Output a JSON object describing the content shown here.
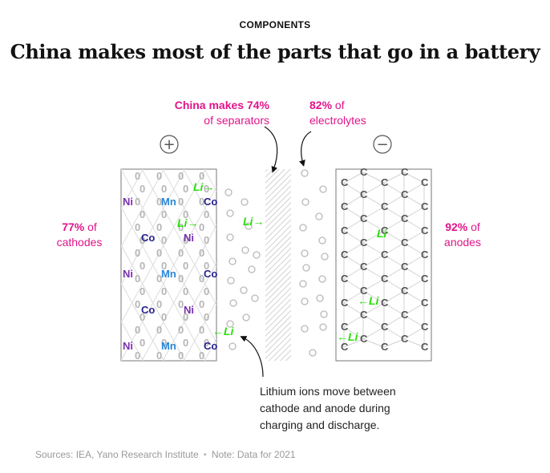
{
  "header": {
    "kicker": "COMPONENTS",
    "title": "China makes most of the parts that go in a battery"
  },
  "annotations": {
    "separators": {
      "lead": "China makes 74%",
      "rest": "of separators"
    },
    "electrolytes": {
      "lead": "82%",
      "rest1": " of",
      "rest2": "electrolytes"
    },
    "cathodes": {
      "lead": "77%",
      "rest1": " of",
      "rest2": "cathodes"
    },
    "anodes": {
      "lead": "92%",
      "rest1": " of",
      "rest2": "anodes"
    }
  },
  "note": {
    "line1": "Lithium ions move between",
    "line2": "cathode and anode during",
    "line3": "charging and discharge."
  },
  "diagram": {
    "positive_terminal": "+",
    "negative_terminal": "−",
    "cathode_elements": [
      {
        "label": "Ni",
        "color": "#7b2fb0"
      },
      {
        "label": "Mn",
        "color": "#2a86d6"
      },
      {
        "label": "Co",
        "color": "#25218f"
      },
      {
        "label": "Co",
        "color": "#25218f"
      },
      {
        "label": "Ni",
        "color": "#7b2fb0"
      },
      {
        "label": "Ni",
        "color": "#7b2fb0"
      },
      {
        "label": "Mn",
        "color": "#2a86d6"
      },
      {
        "label": "Co",
        "color": "#25218f"
      },
      {
        "label": "Co",
        "color": "#25218f"
      },
      {
        "label": "Ni",
        "color": "#7b2fb0"
      },
      {
        "label": "Ni",
        "color": "#7b2fb0"
      },
      {
        "label": "Mn",
        "color": "#2a86d6"
      },
      {
        "label": "Co",
        "color": "#25218f"
      }
    ],
    "anode_atom_label": "C",
    "ion_labels": [
      "Li→",
      "Li→",
      "Li→",
      "←Li",
      "Li",
      "←Li",
      "←Li"
    ],
    "colors": {
      "ion": "#2adf0a",
      "accent": "#e0158a",
      "grid": "#b5b5b5",
      "carbon": "#555555"
    }
  },
  "footer": {
    "sources": "Sources: IEA, Yano Research Institute",
    "note": "Note: Data for 2021"
  }
}
